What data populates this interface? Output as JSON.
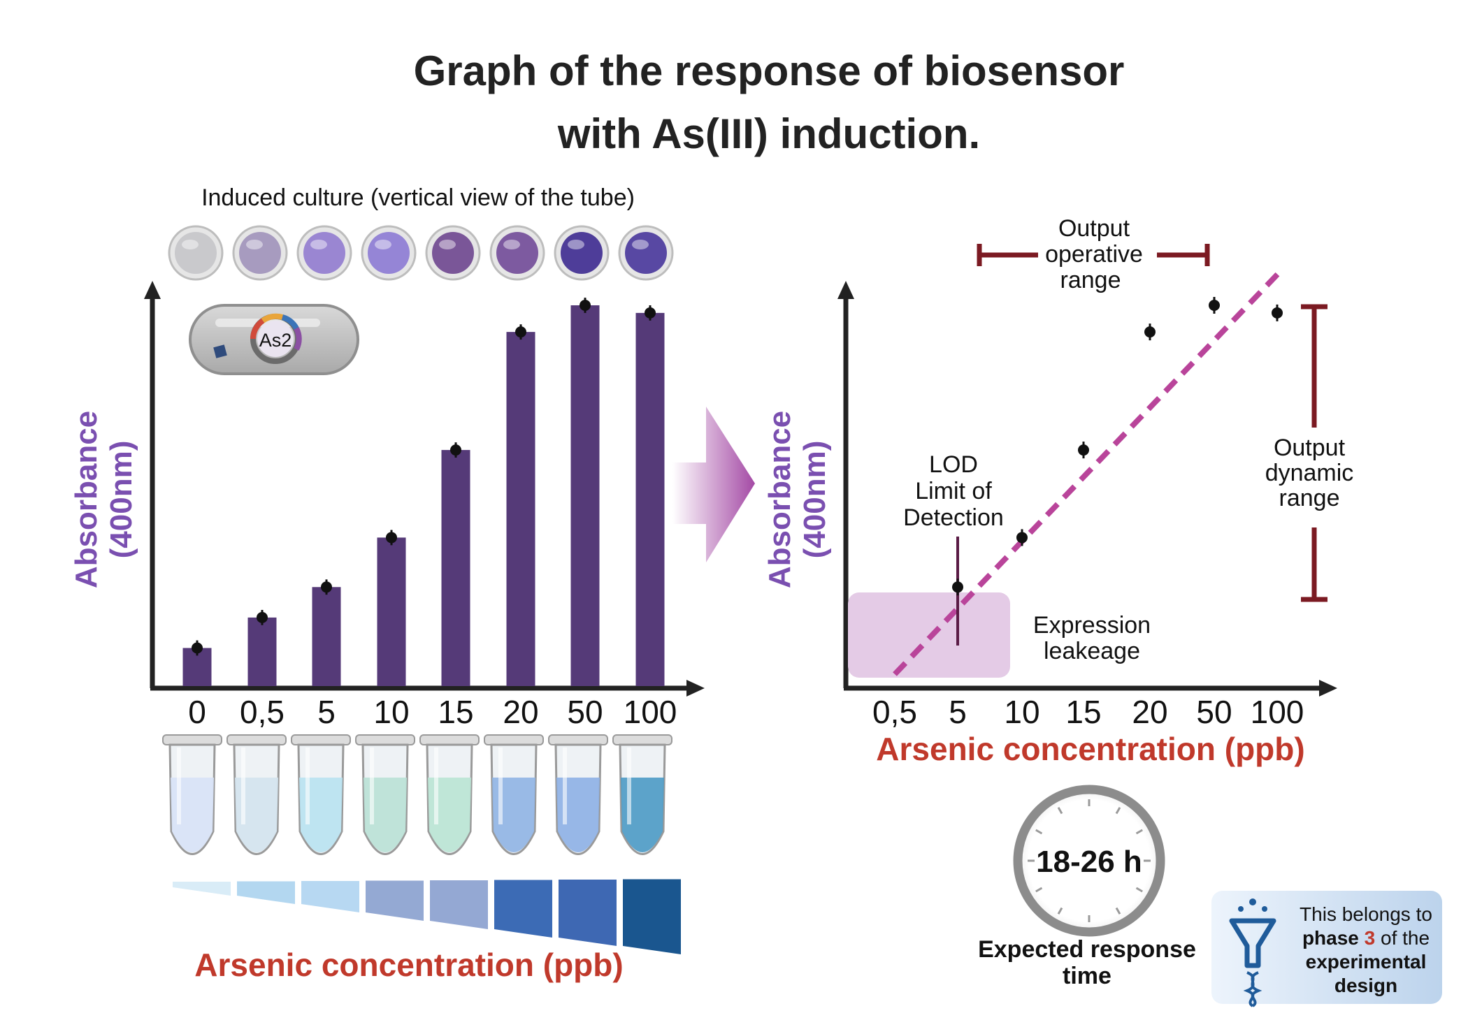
{
  "title_line1": "Graph of the response of biosensor",
  "title_line2": "with As(III) induction.",
  "culture_caption": "Induced culture (vertical view of the tube)",
  "plasmid_label": "As2",
  "colors": {
    "bar": "#553a78",
    "ylabel": "#7a4fb0",
    "xlabel": "#c0392b",
    "bracket": "#7b1a22",
    "fit_line": "#b9449a",
    "leakage": "#e4cbe6"
  },
  "icons": [
    "bacterium-icon",
    "plasmid-icon",
    "arrow-right-icon",
    "clock-icon",
    "funnel-dna-icon",
    "tube-icon",
    "well-icon"
  ],
  "chart_data": [
    {
      "type": "bar",
      "categories": [
        "0",
        "0,5",
        "5",
        "10",
        "15",
        "20",
        "50",
        "100"
      ],
      "values": [
        0.1,
        0.18,
        0.26,
        0.39,
        0.62,
        0.93,
        1.0,
        0.98
      ],
      "error": [
        0.02,
        0.02,
        0.02,
        0.02,
        0.02,
        0.02,
        0.02,
        0.02
      ],
      "ylabel_line1": "Absorbance",
      "ylabel_line2": "(400nm)",
      "xlabel": "Arsenic concentration (ppb)",
      "ylim": [
        0,
        1.05
      ],
      "grid": false
    },
    {
      "type": "scatter",
      "categories": [
        "0,5",
        "5",
        "10",
        "15",
        "20",
        "50",
        "100"
      ],
      "points": [
        {
          "x": "5",
          "y": 0.26
        },
        {
          "x": "10",
          "y": 0.39
        },
        {
          "x": "15",
          "y": 0.62
        },
        {
          "x": "20",
          "y": 0.93
        },
        {
          "x": "50",
          "y": 1.0
        },
        {
          "x": "100",
          "y": 0.98
        }
      ],
      "ylabel_line1": "Absorbance",
      "ylabel_line2": "(400nm)",
      "xlabel": "Arsenic concentration (ppb)",
      "ylim": [
        0,
        1.05
      ],
      "trend": "dashed-linear",
      "annotations": {
        "lod": [
          "LOD",
          "Limit of",
          "Detection"
        ],
        "leakage": [
          "Expression",
          "leakeage"
        ],
        "operative": [
          "Output",
          "operative",
          "range"
        ],
        "dynamic": [
          "Output",
          "dynamic",
          "range"
        ]
      }
    }
  ],
  "response_time": "18-26 h",
  "response_caption_line1": "Expected response",
  "response_caption_line2": "time",
  "phase_note": {
    "line1": "This belongs to",
    "line2_bold": "phase ",
    "line2_num": "3",
    "line2_rest": " of the",
    "line3": "experimental",
    "line4": "design"
  }
}
